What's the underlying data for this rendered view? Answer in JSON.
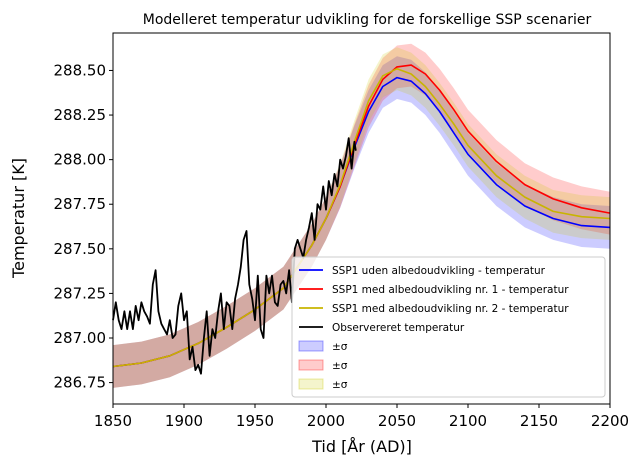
{
  "chart_data": {
    "type": "line",
    "title": "Modelleret temperatur udvikling for de forskellige SSP scenarier",
    "xlabel": "Tid [År (AD)]",
    "ylabel": "Temperatur [K]",
    "xlim": [
      1850,
      2200
    ],
    "ylim": [
      286.63,
      288.71
    ],
    "xticks": [
      1850,
      1900,
      1950,
      2000,
      2050,
      2100,
      2150,
      2200
    ],
    "yticks": [
      286.75,
      287.0,
      287.25,
      287.5,
      287.75,
      288.0,
      288.25,
      288.5
    ],
    "ytick_labels": [
      "286.75",
      "287.00",
      "287.25",
      "287.50",
      "287.75",
      "288.00",
      "288.25",
      "288.50"
    ],
    "grid": false,
    "legend_position": "lower-right",
    "series": [
      {
        "name": "SSP1 uden albedoudvikling - temperatur",
        "color": "#0000ff",
        "x": [
          1850,
          1870,
          1890,
          1910,
          1930,
          1950,
          1970,
          1990,
          2000,
          2010,
          2020,
          2030,
          2040,
          2050,
          2060,
          2070,
          2080,
          2090,
          2100,
          2120,
          2140,
          2160,
          2180,
          2200
        ],
        "y": [
          286.84,
          286.86,
          286.9,
          286.97,
          287.06,
          287.16,
          287.28,
          287.52,
          287.67,
          287.85,
          288.07,
          288.27,
          288.41,
          288.46,
          288.44,
          288.37,
          288.27,
          288.15,
          288.03,
          287.86,
          287.74,
          287.67,
          287.63,
          287.62
        ],
        "sigma": 0.12,
        "sigma_color": "#0000ff"
      },
      {
        "name": "SSP1 med albedoudvikling nr. 1 - temperatur",
        "color": "#ff0000",
        "x": [
          1850,
          1870,
          1890,
          1910,
          1930,
          1950,
          1970,
          1990,
          2000,
          2010,
          2020,
          2030,
          2040,
          2050,
          2060,
          2070,
          2080,
          2090,
          2100,
          2120,
          2140,
          2160,
          2180,
          2200
        ],
        "y": [
          286.84,
          286.86,
          286.9,
          286.97,
          287.06,
          287.16,
          287.28,
          287.52,
          287.67,
          287.85,
          288.08,
          288.3,
          288.45,
          288.52,
          288.53,
          288.48,
          288.39,
          288.28,
          288.16,
          287.99,
          287.86,
          287.78,
          287.73,
          287.7
        ],
        "sigma": 0.12,
        "sigma_color": "#ff0000"
      },
      {
        "name": "SSP1 med albedoudvikling nr. 2 - temperatur",
        "color": "#c8b400",
        "x": [
          1850,
          1870,
          1890,
          1910,
          1930,
          1950,
          1970,
          1990,
          2000,
          2010,
          2020,
          2030,
          2040,
          2050,
          2060,
          2070,
          2080,
          2090,
          2100,
          2120,
          2140,
          2160,
          2180,
          2200
        ],
        "y": [
          286.84,
          286.86,
          286.9,
          286.97,
          287.06,
          287.16,
          287.28,
          287.52,
          287.67,
          287.86,
          288.1,
          288.33,
          288.47,
          288.51,
          288.48,
          288.41,
          288.31,
          288.2,
          288.08,
          287.91,
          287.79,
          287.71,
          287.68,
          287.67
        ],
        "sigma": 0.12,
        "sigma_color": "#c8c800"
      },
      {
        "name": "Observereret temperatur",
        "color": "#000000",
        "x": [
          1850,
          1852,
          1854,
          1856,
          1858,
          1860,
          1862,
          1864,
          1866,
          1868,
          1870,
          1872,
          1874,
          1876,
          1878,
          1880,
          1882,
          1884,
          1886,
          1888,
          1890,
          1892,
          1894,
          1896,
          1898,
          1900,
          1902,
          1904,
          1906,
          1908,
          1910,
          1912,
          1914,
          1916,
          1918,
          1920,
          1922,
          1924,
          1926,
          1928,
          1930,
          1932,
          1934,
          1936,
          1938,
          1940,
          1942,
          1944,
          1946,
          1948,
          1950,
          1952,
          1954,
          1956,
          1958,
          1960,
          1962,
          1964,
          1966,
          1968,
          1970,
          1972,
          1974,
          1976,
          1978,
          1980,
          1982,
          1984,
          1986,
          1988,
          1990,
          1992,
          1994,
          1996,
          1998,
          2000,
          2002,
          2004,
          2006,
          2008,
          2010,
          2012,
          2014,
          2016,
          2018,
          2020,
          2021
        ],
        "y": [
          287.1,
          287.2,
          287.1,
          287.05,
          287.15,
          287.05,
          287.15,
          287.05,
          287.18,
          287.1,
          287.2,
          287.15,
          287.12,
          287.08,
          287.3,
          287.38,
          287.15,
          287.08,
          287.05,
          287.02,
          287.1,
          287.0,
          287.02,
          287.18,
          287.25,
          287.1,
          287.15,
          286.88,
          286.95,
          286.82,
          286.85,
          286.8,
          287.0,
          287.15,
          286.9,
          287.05,
          287.0,
          287.15,
          287.25,
          287.05,
          287.2,
          287.18,
          287.05,
          287.22,
          287.3,
          287.4,
          287.55,
          287.6,
          287.3,
          287.22,
          287.1,
          287.35,
          287.05,
          287.0,
          287.35,
          287.25,
          287.35,
          287.2,
          287.18,
          287.3,
          287.32,
          287.25,
          287.38,
          287.2,
          287.5,
          287.55,
          287.5,
          287.45,
          287.55,
          287.62,
          287.7,
          287.55,
          287.75,
          287.72,
          287.85,
          287.72,
          287.88,
          287.8,
          287.92,
          287.85,
          288.0,
          287.95,
          288.02,
          288.12,
          287.95,
          288.1,
          288.05
        ]
      }
    ],
    "legend": [
      {
        "label": "SSP1 uden albedoudvikling - temperatur",
        "kind": "line",
        "color": "#0000ff"
      },
      {
        "label": "SSP1 med albedoudvikling nr. 1 - temperatur",
        "kind": "line",
        "color": "#ff0000"
      },
      {
        "label": "SSP1 med albedoudvikling nr. 2 - temperatur",
        "kind": "line",
        "color": "#c8b400"
      },
      {
        "label": "Observereret temperatur",
        "kind": "line",
        "color": "#000000"
      },
      {
        "label": "±σ",
        "kind": "patch",
        "color": "#0000ff"
      },
      {
        "label": "±σ",
        "kind": "patch",
        "color": "#ff0000"
      },
      {
        "label": "±σ",
        "kind": "patch",
        "color": "#c8c800"
      }
    ]
  }
}
